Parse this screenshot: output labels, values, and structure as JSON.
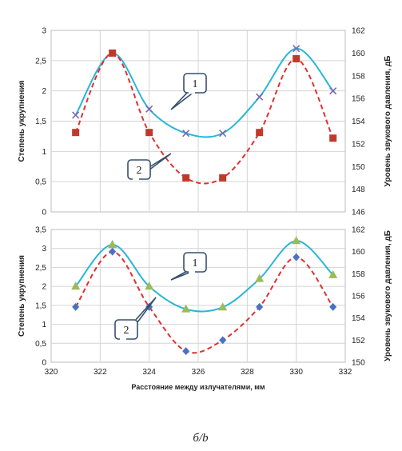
{
  "caption": "б/b",
  "chart_data": [
    {
      "type": "line",
      "xlabel": "",
      "ylabel_left": "Степень укрупнения",
      "ylabel_right": "Уровень звукового давления, дБ",
      "xlim": [
        320,
        332
      ],
      "ylim_left": [
        0,
        3
      ],
      "ylim_right": [
        146,
        162
      ],
      "x_ticks": [],
      "y_ticks_left": [
        "0",
        "0,5",
        "1",
        "1,5",
        "2",
        "2,5",
        "3"
      ],
      "y_ticks_right": [
        "146",
        "148",
        "150",
        "152",
        "154",
        "156",
        "158",
        "160",
        "162"
      ],
      "grid": true,
      "series": [
        {
          "label": "1",
          "axis": "left",
          "marker": "x",
          "line_color": "#29b6d8",
          "marker_color": "#7b67b0",
          "line_style": "solid",
          "x": [
            321,
            322.5,
            324,
            325.5,
            327,
            328.5,
            330,
            331.5
          ],
          "y": [
            1.6,
            2.62,
            1.7,
            1.3,
            1.3,
            1.9,
            2.7,
            2.0
          ]
        },
        {
          "label": "2",
          "axis": "right",
          "marker": "square",
          "line_color": "#e03030",
          "marker_color": "#c0392b",
          "line_style": "dashed",
          "x": [
            321,
            322.5,
            324,
            325.5,
            327,
            328.5,
            330,
            331.5
          ],
          "y": [
            153,
            160,
            153,
            149,
            149,
            153,
            159.5,
            152.5
          ]
        }
      ],
      "callouts": [
        {
          "text": "1",
          "series": 0
        },
        {
          "text": "2",
          "series": 1
        }
      ]
    },
    {
      "type": "line",
      "xlabel": "Расстояние между излучателями, мм",
      "ylabel_left": "Степень укрупнения",
      "ylabel_right": "Уровень звукового давления, дБ",
      "xlim": [
        320,
        332
      ],
      "ylim_left": [
        0,
        3.5
      ],
      "ylim_right": [
        150,
        162
      ],
      "x_ticks": [
        "320",
        "322",
        "324",
        "326",
        "328",
        "330",
        "332"
      ],
      "y_ticks_left": [
        "0",
        "0,5",
        "1",
        "1,5",
        "2",
        "2,5",
        "3",
        "3,5"
      ],
      "y_ticks_right": [
        "150",
        "152",
        "154",
        "156",
        "158",
        "160",
        "162"
      ],
      "grid": true,
      "series": [
        {
          "label": "1",
          "axis": "left",
          "marker": "triangle",
          "line_color": "#29b6d8",
          "marker_color": "#9bbb59",
          "line_style": "solid",
          "x": [
            321,
            322.5,
            324,
            325.5,
            327,
            328.5,
            330,
            331.5
          ],
          "y": [
            2.0,
            3.1,
            2.0,
            1.4,
            1.45,
            2.2,
            3.2,
            2.3
          ]
        },
        {
          "label": "2",
          "axis": "right",
          "marker": "diamond",
          "line_color": "#e03030",
          "marker_color": "#4a72c4",
          "line_style": "dashed",
          "x": [
            321,
            322.5,
            324,
            325.5,
            327,
            328.5,
            330,
            331.5
          ],
          "y": [
            155,
            160,
            155,
            151,
            152,
            155,
            159.5,
            155
          ]
        }
      ],
      "callouts": [
        {
          "text": "1",
          "series": 0
        },
        {
          "text": "2",
          "series": 1
        }
      ]
    }
  ]
}
